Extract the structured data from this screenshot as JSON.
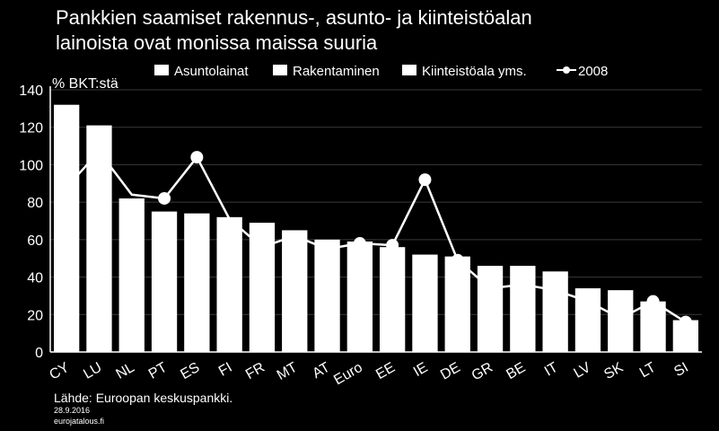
{
  "title_lines": [
    "Pankkien saamiset rakennus-, asunto- ja kiinteistöalan",
    "lainoista ovat monissa maissa suuria"
  ],
  "source": "Lähde: Euroopan keskuspankki.",
  "date": "28.9.2016",
  "site": "eurojatalous.fi",
  "colors": {
    "background": "#000000",
    "bars": "#ffffff",
    "line": "#ffffff",
    "grid": "#3a3a3a"
  },
  "chart_data": {
    "type": "bar",
    "ylabel": "% BKT:stä",
    "ylim": [
      0,
      140
    ],
    "yticks": [
      0,
      20,
      40,
      60,
      80,
      100,
      120,
      140
    ],
    "grid": true,
    "legend_position": "top",
    "legend": [
      "Asuntolainat",
      "Rakentaminen",
      "Kiinteistöala yms.",
      "2008"
    ],
    "categories": [
      "CY",
      "LU",
      "NL",
      "PT",
      "ES",
      "FI",
      "FR",
      "MT",
      "AT",
      "Euro",
      "EE",
      "IE",
      "DE",
      "GR",
      "BE",
      "IT",
      "LV",
      "SK",
      "LT",
      "SI"
    ],
    "series": [
      {
        "name": "Asuntolainat + Rakentaminen + Kiinteistöala yms.",
        "type": "bar",
        "values": [
          132,
          121,
          82,
          75,
          74,
          72,
          69,
          65,
          60,
          59,
          56,
          52,
          51,
          46,
          46,
          43,
          34,
          33,
          27,
          17
        ]
      },
      {
        "name": "2008",
        "type": "line",
        "values": [
          88,
          107,
          84,
          82,
          104,
          71,
          56,
          62,
          55,
          58,
          57,
          92,
          49,
          34,
          36,
          33,
          27,
          18,
          27,
          16
        ],
        "markers_on": [
          3,
          4,
          9,
          10,
          11,
          12,
          18,
          19
        ]
      }
    ]
  }
}
